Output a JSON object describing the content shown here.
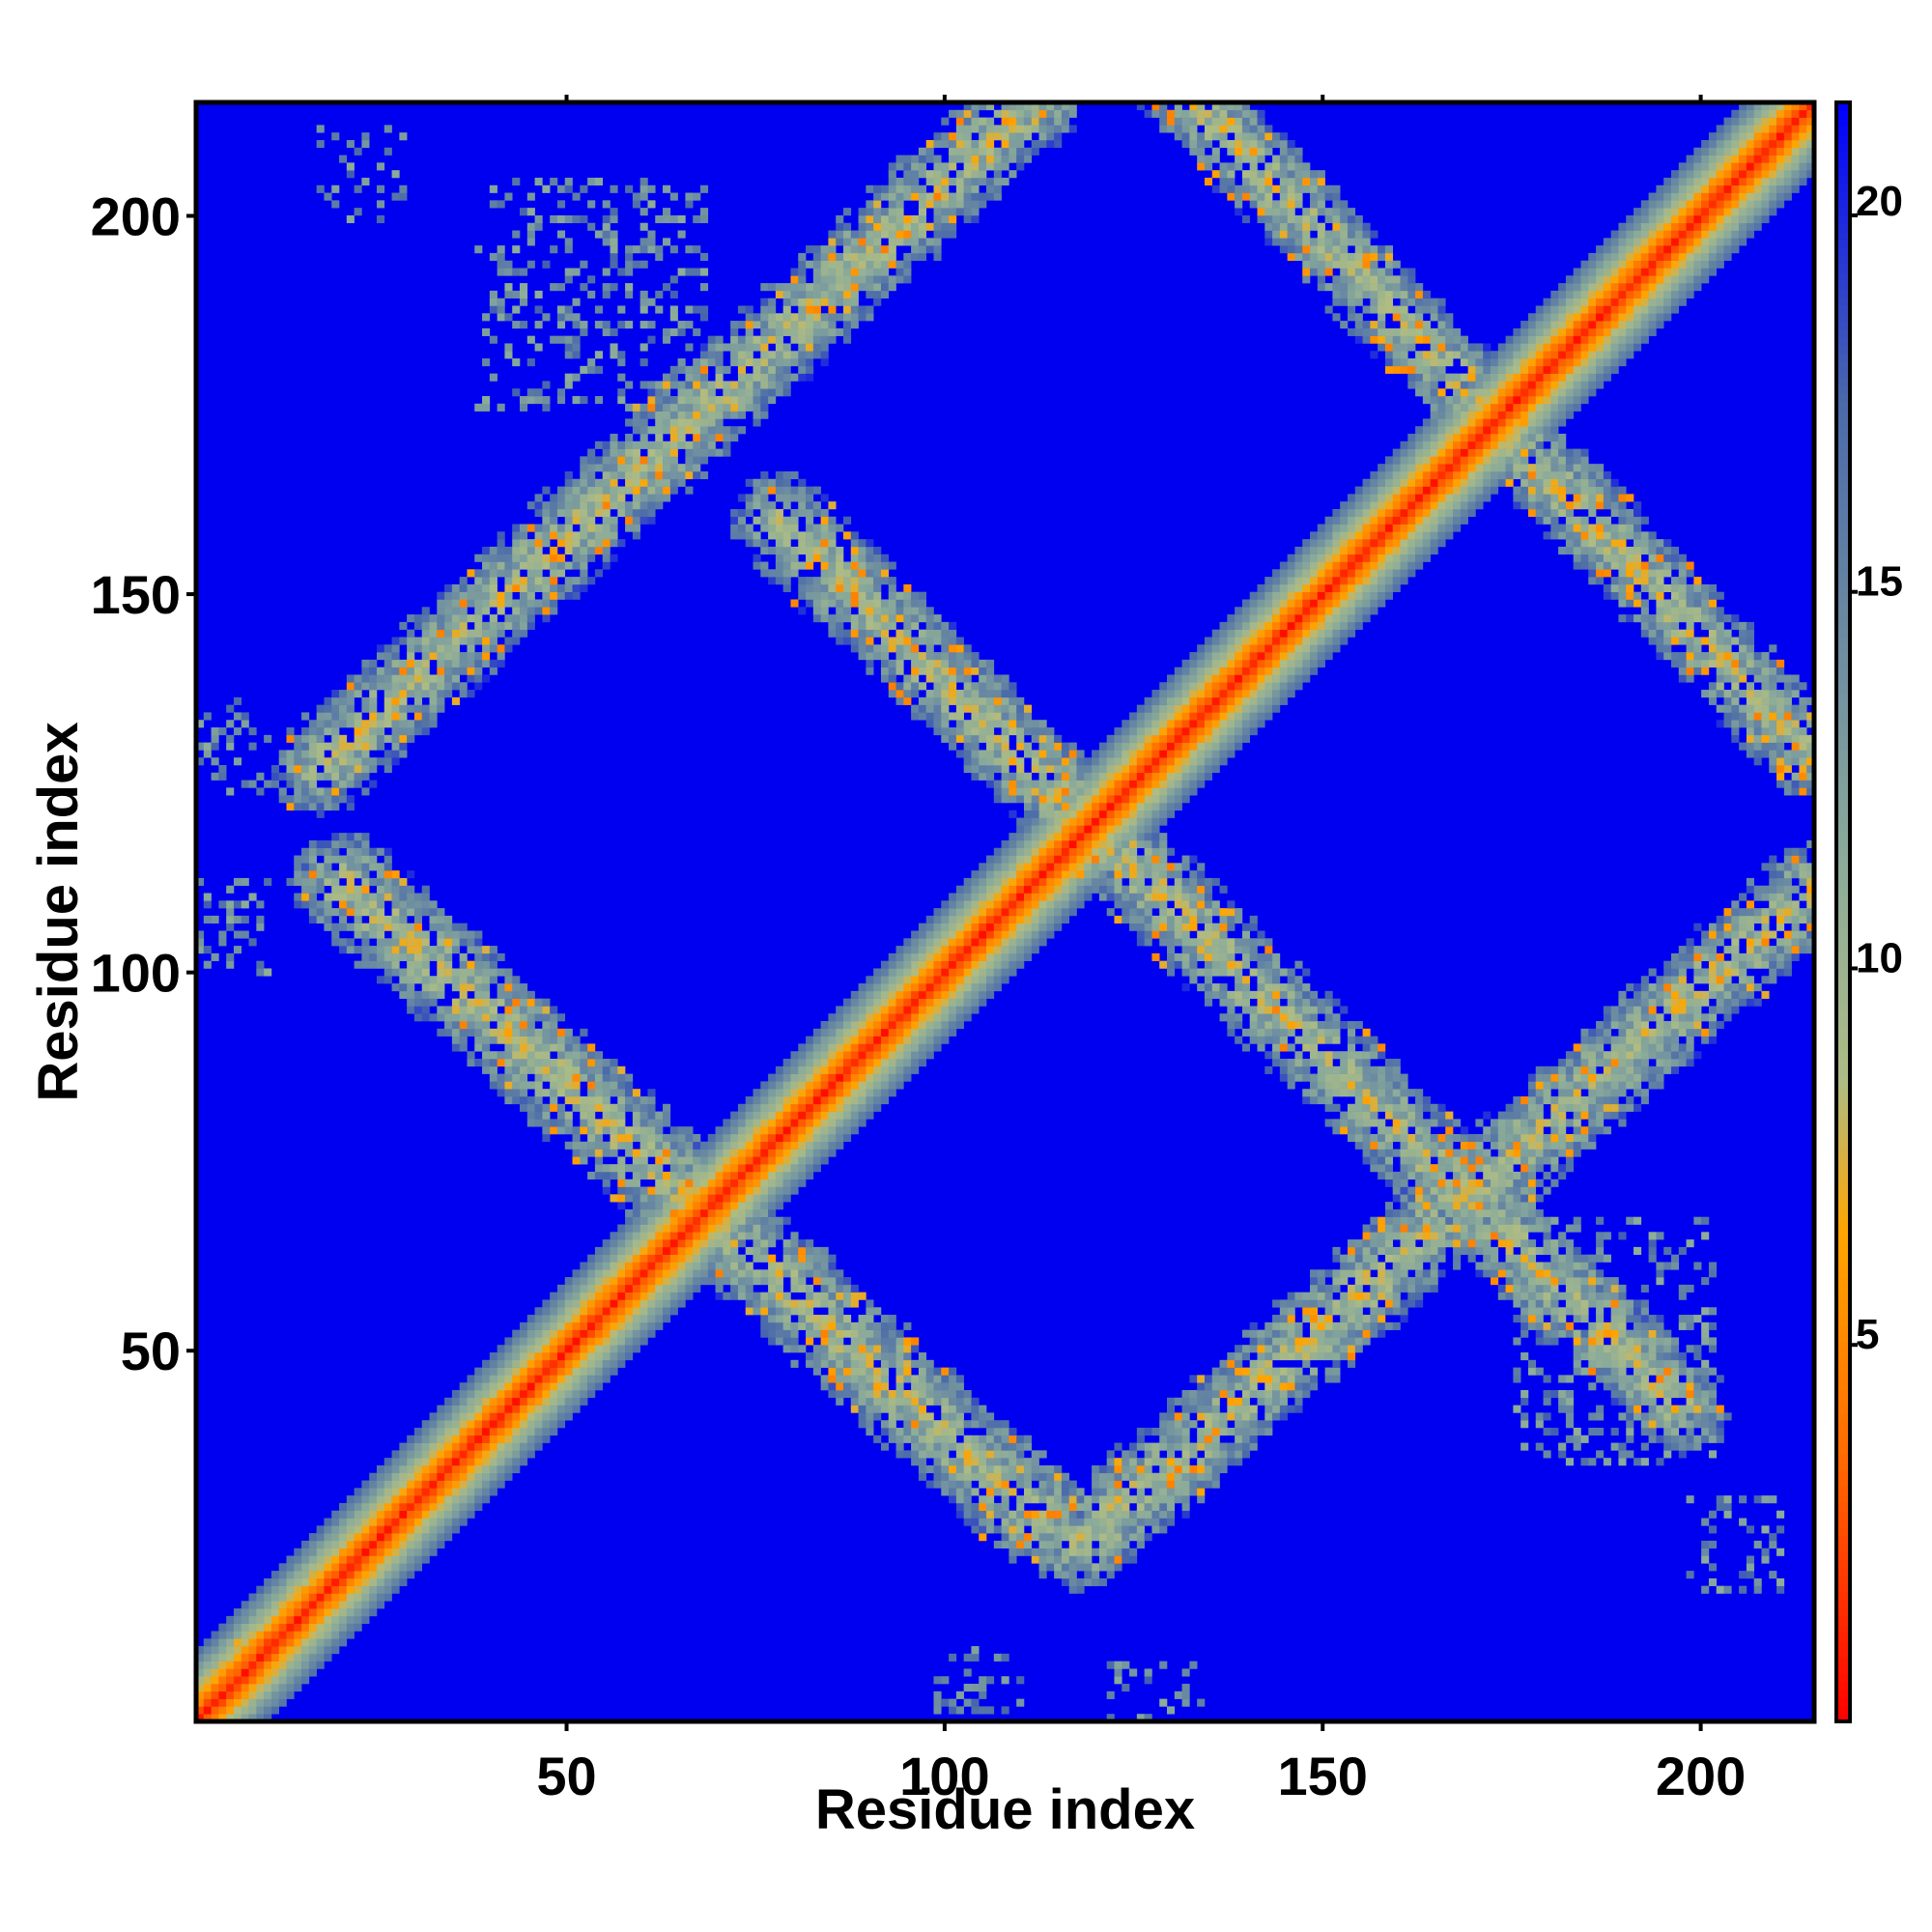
{
  "chart_data": {
    "type": "heatmap",
    "title": "",
    "xlabel": "Residue index",
    "ylabel": "Residue index",
    "n_residues": 215,
    "xlim": [
      1,
      215
    ],
    "ylim": [
      1,
      215
    ],
    "x_ticks": [
      50,
      100,
      150,
      200
    ],
    "y_ticks": [
      50,
      100,
      150,
      200
    ],
    "colorbar": {
      "ticks": [
        5,
        10,
        15,
        20
      ],
      "range": [
        0,
        21.5
      ],
      "colors": [
        "#ff0000",
        "#ff6a00",
        "#ffa500",
        "#aebc84",
        "#8aaa9a",
        "#4a6aaa",
        "#0000ff"
      ],
      "color_stops": [
        0,
        3.5,
        6.5,
        8.5,
        11.5,
        17.5,
        21.5
      ]
    },
    "background_color": "#0000f0",
    "diagonal_band_halfwidth": 9,
    "contact_bands": [
      {
        "from": [
          17,
          127
        ],
        "to": [
          112,
          216
        ],
        "width": 11
      },
      {
        "from": [
          20,
          112
        ],
        "to": [
          112,
          28
        ],
        "width": 12
      },
      {
        "from": [
          78,
          160
        ],
        "to": [
          198,
          42
        ],
        "width": 11
      },
      {
        "from": [
          128,
          221
        ],
        "to": [
          215,
          129
        ],
        "width": 10
      },
      {
        "from": [
          118,
          24
        ],
        "to": [
          215,
          111
        ],
        "width": 11
      },
      {
        "from": [
          2,
          2
        ],
        "to": [
          15,
          15
        ],
        "width": 6
      }
    ],
    "sparse_patches": [
      {
        "x": [
          17,
          28
        ],
        "y": [
          200,
          212
        ]
      },
      {
        "x": [
          38,
          68
        ],
        "y": [
          175,
          205
        ]
      },
      {
        "x": [
          0,
          10
        ],
        "y": [
          124,
          136
        ]
      },
      {
        "x": [
          0,
          10
        ],
        "y": [
          100,
          112
        ]
      },
      {
        "x": [
          176,
          202
        ],
        "y": [
          35,
          67
        ]
      },
      {
        "x": [
          199,
          211
        ],
        "y": [
          18,
          30
        ]
      },
      {
        "x": [
          122,
          134
        ],
        "y": [
          1,
          8
        ]
      },
      {
        "x": [
          99,
          110
        ],
        "y": [
          2,
          10
        ]
      }
    ]
  }
}
